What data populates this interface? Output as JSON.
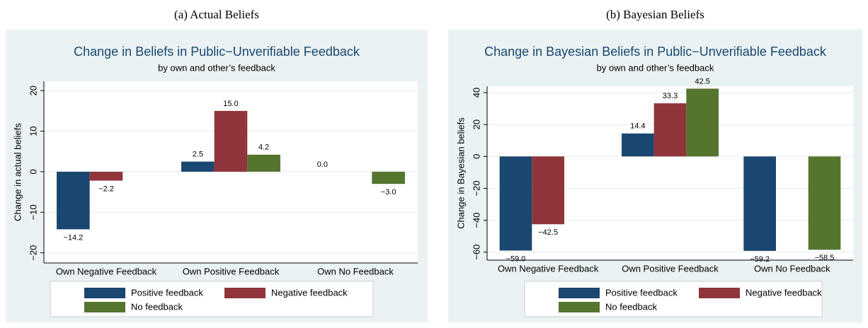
{
  "chart_data": [
    {
      "type": "bar",
      "caption": "(a) Actual Beliefs",
      "title": "Change in Beliefs in Public−Unverifiable Feedback",
      "subtitle": "by own and other’s feedback",
      "y_label": "Change in actual beliefs",
      "categories": [
        "Own Negative Feedback",
        "Own Positive Feedback",
        "Own No Feedback"
      ],
      "series": [
        {
          "name": "Positive feedback",
          "color": "#1a476f",
          "values": [
            -14.2,
            2.5,
            0.0
          ],
          "value_labels": [
            "−14.2",
            "2.5",
            "0.0"
          ]
        },
        {
          "name": "Negative feedback",
          "color": "#90353b",
          "values": [
            -2.2,
            15.0,
            null
          ],
          "value_labels": [
            "−2.2",
            "15.0",
            null
          ]
        },
        {
          "name": "No feedback",
          "color": "#55752f",
          "values": [
            null,
            4.2,
            -3.0
          ],
          "value_labels": [
            null,
            "4.2",
            "−3.0"
          ]
        }
      ],
      "ylim": [
        -22.5,
        22.3
      ],
      "yticks": [
        {
          "value": -20,
          "label": "−20"
        },
        {
          "value": -10,
          "label": "−10"
        },
        0,
        10,
        20
      ],
      "grid": true
    },
    {
      "type": "bar",
      "caption": "(b) Bayesian Beliefs",
      "title": "Change in Bayesian Beliefs in Public−Unverifiable Feedback",
      "subtitle": "by own and other’s feedback",
      "y_label": "Change in Bayesian beliefs",
      "categories": [
        "Own Negative Feedback",
        "Own Positive Feedback",
        "Own No Feedback"
      ],
      "series": [
        {
          "name": "Positive feedback",
          "color": "#1a476f",
          "values": [
            -59.0,
            14.4,
            -59.2
          ],
          "value_labels": [
            "−59.0",
            "14.4",
            "−59.2"
          ]
        },
        {
          "name": "Negative feedback",
          "color": "#90353b",
          "values": [
            -42.5,
            33.3,
            null
          ],
          "value_labels": [
            "−42.5",
            "33.3",
            null
          ]
        },
        {
          "name": "No feedback",
          "color": "#55752f",
          "values": [
            null,
            42.5,
            -58.5
          ],
          "value_labels": [
            null,
            "42.5",
            "−58.5"
          ]
        }
      ],
      "ylim": [
        -65,
        44
      ],
      "yticks": [
        {
          "value": -60,
          "label": "−60"
        },
        {
          "value": -40,
          "label": "−40"
        },
        {
          "value": -20,
          "label": "−20"
        },
        0,
        20,
        40
      ],
      "grid": true
    }
  ]
}
